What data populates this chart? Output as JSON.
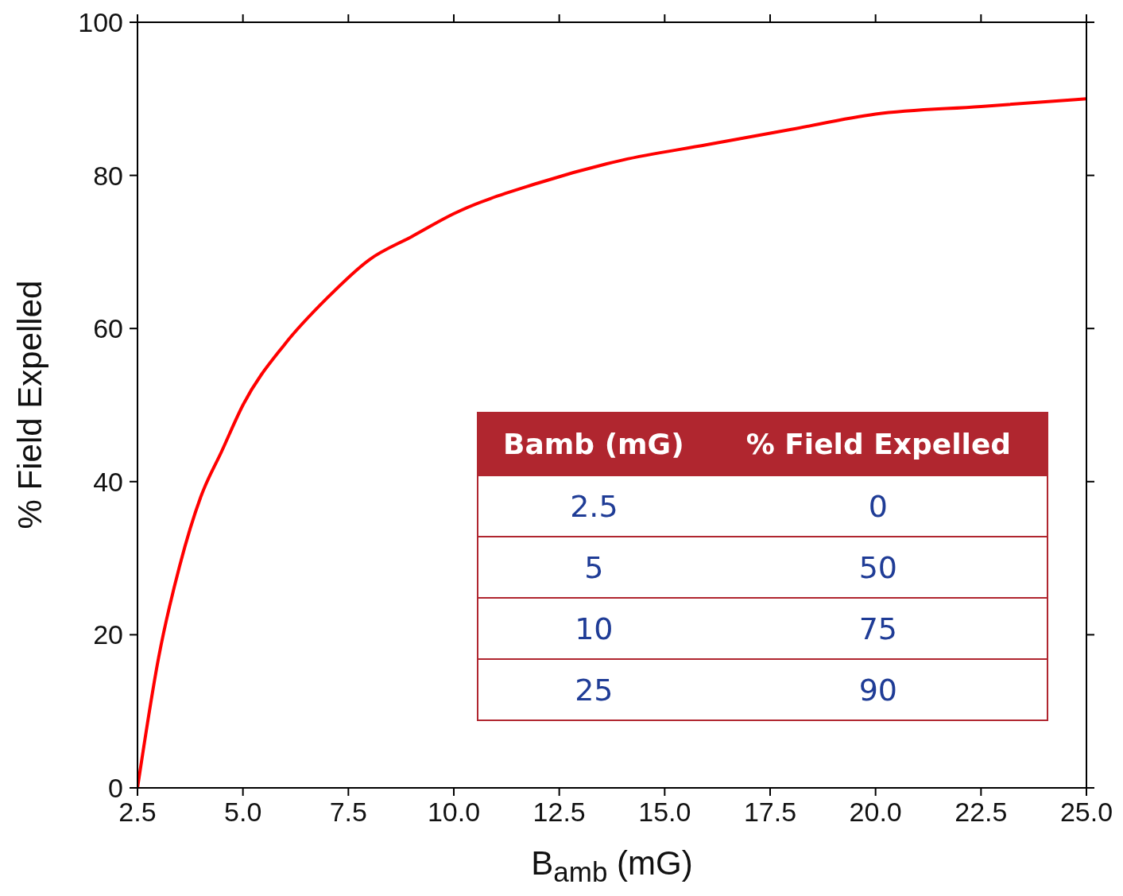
{
  "chart_data": {
    "type": "line",
    "xlabel": "B$_{amb}$ (mG)",
    "ylabel": "% Field Expelled",
    "x": [
      2.5,
      3,
      3.5,
      4,
      4.5,
      5,
      6,
      7,
      8,
      9,
      10,
      12,
      14,
      16,
      18,
      20,
      22.5,
      25
    ],
    "series": [
      {
        "color": "#ff0000",
        "values": [
          0,
          17,
          29,
          38,
          44,
          50,
          58,
          64,
          69,
          72,
          75,
          79,
          82,
          84,
          86,
          88,
          89,
          90
        ]
      }
    ],
    "xlim": [
      2.5,
      25
    ],
    "xticks": [
      {
        "value": 2.5,
        "label": "2.5"
      },
      {
        "value": 5,
        "label": "5.0"
      },
      {
        "value": 7.5,
        "label": "7.5"
      },
      {
        "value": 10,
        "label": "10.0"
      },
      {
        "value": 12.5,
        "label": "12.5"
      },
      {
        "value": 15,
        "label": "15.0"
      },
      {
        "value": 17.5,
        "label": "17.5"
      },
      {
        "value": 20,
        "label": "20.0"
      },
      {
        "value": 22.5,
        "label": "22.5"
      },
      {
        "value": 25,
        "label": "25.0"
      }
    ],
    "ylim": [
      0,
      100
    ],
    "yticks": [
      0,
      20,
      40,
      60,
      80,
      100
    ],
    "annotations": [
      "Bamb (mG)",
      "% Field Expelled",
      "2.5",
      "0",
      "5",
      "50",
      "10",
      "75",
      "25",
      "90"
    ],
    "grid": false,
    "legend": false,
    "marker": "none",
    "line_style": "solid"
  }
}
